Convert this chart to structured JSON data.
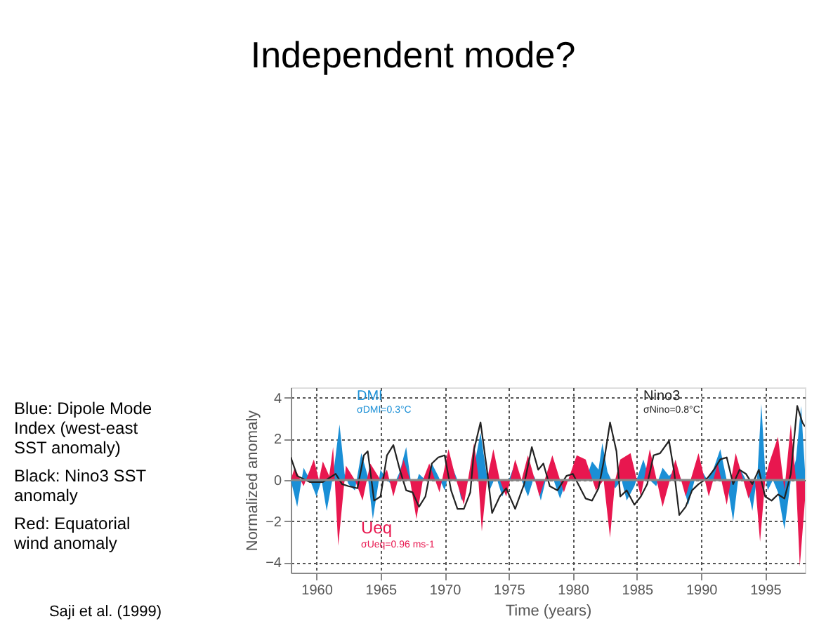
{
  "chart_data": {
    "type": "area",
    "title": "Independent mode?",
    "xlabel": "Time (years)",
    "ylabel": "Normalized anomaly",
    "xlim": [
      1958,
      1998.1
    ],
    "ylim": [
      -4.5,
      4.5
    ],
    "xticks": [
      1960,
      1965,
      1970,
      1975,
      1980,
      1985,
      1990,
      1995
    ],
    "yticks": [
      -4,
      -2,
      0,
      2,
      4
    ],
    "grid": true,
    "series": [
      {
        "name": "DMI",
        "color": "#1a8fd6",
        "x": [
          1958,
          1958.5,
          1959,
          1959.5,
          1960,
          1960.4,
          1960.8,
          1961.3,
          1961.8,
          1962.2,
          1962.5,
          1963,
          1963.5,
          1964,
          1964.4,
          1965,
          1965.5,
          1966,
          1966.5,
          1967,
          1967.5,
          1968,
          1968.5,
          1969,
          1969.5,
          1970,
          1970.5,
          1971,
          1971.3,
          1972,
          1972.4,
          1972.8,
          1973.2,
          1973.5,
          1974,
          1974.5,
          1975,
          1975.5,
          1976,
          1976.5,
          1977,
          1977.5,
          1978,
          1978.5,
          1979,
          1979.5,
          1980,
          1980.5,
          1981,
          1981.5,
          1982,
          1982.3,
          1982.7,
          1983.3,
          1983.8,
          1984.2,
          1984.8,
          1985.5,
          1986,
          1986.5,
          1987,
          1987.5,
          1988,
          1988.5,
          1989,
          1989.5,
          1990,
          1990.5,
          1991,
          1991.5,
          1992,
          1992.5,
          1993,
          1993.5,
          1994,
          1994.4,
          1994.7,
          1995,
          1995.2,
          1995.6,
          1996,
          1996.5,
          1997,
          1997.4,
          1997.8,
          1998.1
        ],
        "values": [
          0,
          -1.3,
          0.6,
          0,
          -0.8,
          0,
          -1.5,
          0.2,
          2.7,
          0.3,
          -0.2,
          -0.5,
          1.3,
          0.2,
          -1.9,
          0.5,
          0,
          -0.3,
          0.4,
          1.6,
          -0.7,
          0.3,
          0,
          0.8,
          0.2,
          -0.5,
          0.8,
          0,
          -1,
          0.3,
          1,
          2.3,
          0.6,
          -0.5,
          0.2,
          -0.8,
          0,
          0.8,
          0,
          -0.8,
          0.2,
          -1,
          0.3,
          0,
          -0.9,
          0,
          0,
          0,
          0,
          0.9,
          0.5,
          1.8,
          0.4,
          -0.4,
          0,
          -1,
          -0.3,
          1,
          0,
          -0.3,
          0.6,
          0.2,
          0.5,
          0,
          -1.2,
          0,
          0.5,
          0,
          0.6,
          1.5,
          0,
          -2,
          0.6,
          0,
          -1.5,
          0.3,
          3.7,
          0.4,
          -0.5,
          0,
          -0.6,
          -2.4,
          0,
          1.0,
          3.6,
          0.5
        ]
      },
      {
        "name": "Ueq",
        "color": "#e8174f",
        "x": [
          1958,
          1958.3,
          1959,
          1959.8,
          1960.2,
          1960.5,
          1961,
          1961.3,
          1961.7,
          1962.3,
          1963,
          1963.6,
          1964.2,
          1965,
          1965.5,
          1966,
          1966.8,
          1967.3,
          1967.8,
          1968.3,
          1968.8,
          1969.6,
          1970.3,
          1970.9,
          1971.5,
          1972.3,
          1972.6,
          1972.9,
          1973.3,
          1973.8,
          1974.3,
          1974.8,
          1975.5,
          1976,
          1976.5,
          1977.4,
          1978.4,
          1979.3,
          1980.3,
          1981,
          1981.8,
          1982.4,
          1982.9,
          1983.3,
          1983.7,
          1984.5,
          1985.3,
          1986,
          1987,
          1988,
          1988.8,
          1989.8,
          1990.6,
          1991.3,
          1992,
          1992.7,
          1993.7,
          1994.2,
          1994.6,
          1995,
          1995.3,
          1996,
          1996.5,
          1997,
          1997.4,
          1997.7,
          1998.1
        ],
        "values": [
          0,
          0.6,
          -0.3,
          1,
          0,
          0.9,
          0.2,
          1.6,
          -3.2,
          0.7,
          0,
          -1,
          0.8,
          0,
          0.5,
          -0.8,
          1,
          0,
          -1.9,
          0,
          0.8,
          -0.6,
          1.5,
          0,
          -1.2,
          1.8,
          0.3,
          -2.5,
          0,
          1.5,
          0,
          -0.8,
          1,
          0,
          1.2,
          -0.8,
          1.2,
          -0.6,
          1.2,
          1,
          -0.5,
          0,
          -2.8,
          0,
          1,
          1.3,
          -0.8,
          1.5,
          -1.3,
          1,
          -0.8,
          1.3,
          -0.8,
          0.8,
          -1.2,
          1.3,
          -0.9,
          0,
          -3,
          0,
          0.8,
          2.1,
          -0.5,
          2.7,
          0,
          -4.2,
          -1
        ]
      },
      {
        "name": "Nino3",
        "type": "line",
        "color": "#222222",
        "x": [
          1958,
          1958.5,
          1959.5,
          1960.5,
          1961.5,
          1962,
          1962.5,
          1963.2,
          1963.7,
          1964,
          1964.5,
          1965,
          1965.5,
          1966,
          1966.5,
          1967,
          1967.5,
          1968,
          1968.5,
          1969,
          1969.5,
          1970,
          1970.5,
          1971,
          1971.5,
          1972,
          1972.3,
          1972.8,
          1973.3,
          1973.7,
          1974.3,
          1974.8,
          1975.5,
          1976.2,
          1976.8,
          1977.3,
          1977.7,
          1978.2,
          1978.8,
          1979.5,
          1980,
          1980.5,
          1981,
          1981.5,
          1982,
          1982.5,
          1982.9,
          1983.4,
          1983.7,
          1984.2,
          1984.8,
          1985.3,
          1985.8,
          1986.3,
          1986.8,
          1987.5,
          1987.9,
          1988.3,
          1988.8,
          1989.3,
          1989.8,
          1990.5,
          1991,
          1991.5,
          1992,
          1992.5,
          1993,
          1993.5,
          1994,
          1994.5,
          1995,
          1995.5,
          1996,
          1996.5,
          1997,
          1997.5,
          1997.9,
          1998.1
        ],
        "values": [
          1.1,
          0.2,
          -0.1,
          -0.1,
          0.3,
          -0.2,
          -0.3,
          -0.4,
          1.2,
          1.4,
          -1.0,
          -0.8,
          1.2,
          1.7,
          0.5,
          -0.5,
          -0.6,
          -1.3,
          -0.8,
          0.8,
          1.1,
          1.2,
          -0.5,
          -1.4,
          -1.4,
          -0.6,
          1.5,
          2.8,
          0.5,
          -1.6,
          -0.8,
          -0.4,
          -1.4,
          -0.2,
          1.6,
          0.5,
          0.8,
          -0.3,
          -0.5,
          0.2,
          0.3,
          -0.3,
          -0.9,
          -1.0,
          -0.4,
          1.2,
          2.8,
          1.4,
          -0.8,
          -0.5,
          -1.2,
          -0.8,
          -0.2,
          1.2,
          1.3,
          1.9,
          0.4,
          -1.7,
          -1.3,
          -0.5,
          -0.2,
          0.1,
          0.5,
          1.0,
          1.1,
          -0.2,
          0.5,
          0.3,
          -0.2,
          0.5,
          -0.8,
          -1.0,
          -0.7,
          -0.9,
          0.3,
          3.6,
          2.8,
          2.6
        ]
      }
    ],
    "annotations": [
      "σDMI=0.3°C",
      "σNino=0.8°C",
      "σUeq=0.96 ms-1",
      "Blue: Dipole Mode Index (west-east SST anomaly)",
      "Black: Nino3 SST anomaly",
      "Red: Equatorial wind anomaly",
      "Saji et al. (1999)"
    ]
  }
}
